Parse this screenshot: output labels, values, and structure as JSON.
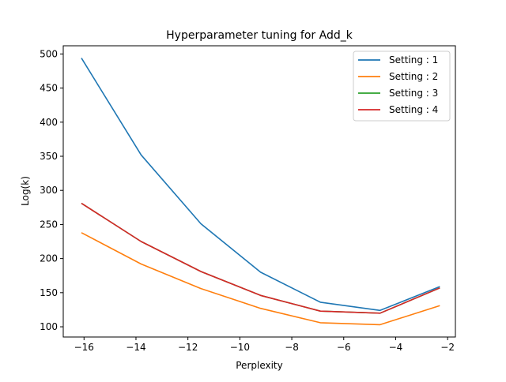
{
  "chart_data": {
    "type": "line",
    "title": "Hyperparameter tuning for Add_k",
    "xlabel": "Perplexity",
    "ylabel": "Log(k)",
    "xlim": [
      -16.8,
      -1.7
    ],
    "ylim": [
      85,
      512
    ],
    "xticks": [
      -16,
      -14,
      -12,
      -10,
      -8,
      -6,
      -4,
      -2
    ],
    "xtick_labels": [
      "−16",
      "−14",
      "−12",
      "−10",
      "−8",
      "−6",
      "−4",
      "−2"
    ],
    "yticks": [
      100,
      150,
      200,
      250,
      300,
      350,
      400,
      450,
      500
    ],
    "ytick_labels": [
      "100",
      "150",
      "200",
      "250",
      "300",
      "350",
      "400",
      "450",
      "500"
    ],
    "grid": false,
    "legend_position": "top-right",
    "x": [
      -16.1,
      -13.8,
      -11.5,
      -9.2,
      -6.9,
      -4.6,
      -2.3
    ],
    "series": [
      {
        "name": "Setting : 1",
        "color": "#1f77b4",
        "values": [
          494,
          352,
          251,
          180,
          136,
          124,
          159
        ]
      },
      {
        "name": "Setting : 2",
        "color": "#ff7f0e",
        "values": [
          238,
          192,
          156,
          127,
          106,
          103,
          131
        ]
      },
      {
        "name": "Setting : 3",
        "color": "#2ca02c",
        "values": [
          281,
          225,
          181,
          146,
          123,
          120,
          157
        ]
      },
      {
        "name": "Setting : 4",
        "color": "#d62728",
        "values": [
          281,
          225,
          181,
          146,
          123,
          120,
          157
        ]
      }
    ]
  }
}
